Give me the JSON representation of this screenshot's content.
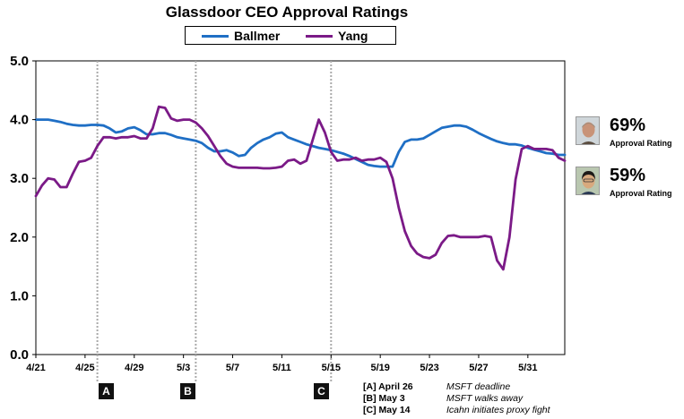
{
  "title": "Glassdoor CEO Approval Ratings",
  "legend": [
    {
      "label": "Ballmer",
      "color": "#1f6fc5"
    },
    {
      "label": "Yang",
      "color": "#7b1a87"
    }
  ],
  "markers": [
    {
      "letter": "A",
      "date": "4/26"
    },
    {
      "letter": "B",
      "date": "5/3"
    },
    {
      "letter": "C",
      "date": "5/14"
    }
  ],
  "notes": [
    {
      "key": "[A] April 26",
      "desc": "MSFT deadline"
    },
    {
      "key": "[B] May 3",
      "desc": "MSFT walks away"
    },
    {
      "key": "[C] May 14",
      "desc": "Icahn initiates proxy fight"
    }
  ],
  "ratings": [
    {
      "name": "Ballmer",
      "percent": "69%",
      "label": "Approval Rating"
    },
    {
      "name": "Yang",
      "percent": "59%",
      "label": "Approval Rating"
    }
  ],
  "chart_data": {
    "type": "line",
    "title": "Glassdoor CEO Approval Ratings",
    "xlabel": "",
    "ylabel": "",
    "x_tick_labels": [
      "4/21",
      "4/25",
      "4/29",
      "5/3",
      "5/7",
      "5/11",
      "5/15",
      "5/19",
      "5/23",
      "5/27",
      "5/31"
    ],
    "x_range": [
      0,
      43
    ],
    "ylim": [
      0,
      5
    ],
    "y_tick_labels": [
      "0.0",
      "1.0",
      "2.0",
      "3.0",
      "4.0",
      "5.0"
    ],
    "x": [
      0,
      0.5,
      1,
      1.5,
      2,
      2.5,
      3,
      3.5,
      4,
      4.5,
      5,
      5.5,
      6,
      6.5,
      7,
      7.5,
      8,
      8.5,
      9,
      9.5,
      10,
      10.5,
      11,
      11.5,
      12,
      12.5,
      13,
      13.5,
      14,
      14.5,
      15,
      15.5,
      16,
      16.5,
      17,
      17.5,
      18,
      18.5,
      19,
      19.5,
      20,
      20.5,
      21,
      21.5,
      22,
      22.5,
      23,
      23.5,
      24,
      24.5,
      25,
      25.5,
      26,
      26.5,
      27,
      27.5,
      28,
      28.5,
      29,
      29.5,
      30,
      30.5,
      31,
      31.5,
      32,
      32.5,
      33,
      33.5,
      34,
      34.5,
      35,
      35.5,
      36,
      36.5,
      37,
      37.5,
      38,
      38.5,
      39,
      39.5,
      40,
      40.5,
      41,
      41.5,
      42,
      42.5,
      43
    ],
    "series": [
      {
        "name": "Ballmer",
        "color": "#1f6fc5",
        "values": [
          4.0,
          4.0,
          4.0,
          3.98,
          3.96,
          3.93,
          3.91,
          3.9,
          3.9,
          3.91,
          3.91,
          3.9,
          3.85,
          3.78,
          3.8,
          3.85,
          3.87,
          3.82,
          3.75,
          3.75,
          3.77,
          3.77,
          3.74,
          3.7,
          3.68,
          3.66,
          3.64,
          3.6,
          3.52,
          3.46,
          3.46,
          3.48,
          3.44,
          3.38,
          3.4,
          3.52,
          3.6,
          3.66,
          3.7,
          3.76,
          3.78,
          3.7,
          3.66,
          3.62,
          3.58,
          3.55,
          3.52,
          3.5,
          3.48,
          3.45,
          3.42,
          3.38,
          3.33,
          3.28,
          3.23,
          3.21,
          3.2,
          3.2,
          3.2,
          3.45,
          3.62,
          3.66,
          3.66,
          3.68,
          3.74,
          3.8,
          3.86,
          3.88,
          3.9,
          3.9,
          3.88,
          3.83,
          3.77,
          3.72,
          3.67,
          3.63,
          3.6,
          3.58,
          3.58,
          3.56,
          3.52,
          3.49,
          3.46,
          3.43,
          3.42,
          3.4,
          3.4
        ]
      },
      {
        "name": "Yang",
        "color": "#7b1a87",
        "values": [
          2.7,
          2.88,
          3.0,
          2.98,
          2.85,
          2.85,
          3.08,
          3.28,
          3.3,
          3.35,
          3.55,
          3.7,
          3.7,
          3.68,
          3.7,
          3.7,
          3.72,
          3.68,
          3.68,
          3.85,
          4.22,
          4.2,
          4.02,
          3.98,
          4.0,
          4.0,
          3.95,
          3.85,
          3.72,
          3.55,
          3.38,
          3.25,
          3.2,
          3.18,
          3.18,
          3.18,
          3.18,
          3.17,
          3.17,
          3.18,
          3.2,
          3.3,
          3.32,
          3.25,
          3.3,
          3.65,
          4.0,
          3.78,
          3.45,
          3.3,
          3.32,
          3.32,
          3.35,
          3.3,
          3.32,
          3.32,
          3.35,
          3.28,
          3.0,
          2.5,
          2.1,
          1.85,
          1.72,
          1.66,
          1.64,
          1.7,
          1.9,
          2.02,
          2.03,
          2.0,
          2.0,
          2.0,
          2.0,
          2.02,
          2.0,
          1.6,
          1.45,
          2.0,
          2.98,
          3.5,
          3.55,
          3.5,
          3.5,
          3.5,
          3.48,
          3.35,
          3.3
        ]
      }
    ]
  }
}
